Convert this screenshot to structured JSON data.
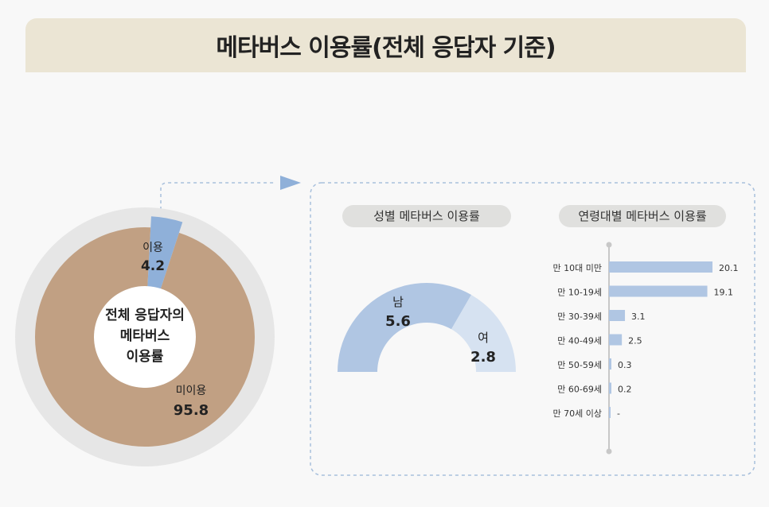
{
  "title": "메타버스 이용률(전체 응답자 기준)",
  "colors": {
    "donut_main": "#c1a083",
    "donut_use": "#8fb0d9",
    "donut_ring": "#e6e6e6",
    "half_male": "#b0c6e3",
    "half_female": "#d6e2f1",
    "bar": "#b0c6e3",
    "pill": "#e0e0de"
  },
  "donut": {
    "center_line1": "전체 응답자의",
    "center_line2": "메타버스",
    "center_line3": "이용률"
  },
  "gender_title": "성별 메타버스 이용률",
  "age_title": "연령대별 메타버스 이용률",
  "chart_data": [
    {
      "type": "pie",
      "categories": [
        "이용",
        "미이용"
      ],
      "values": [
        4.2,
        95.8
      ],
      "title": "메타버스 이용률(전체 응답자 기준)"
    },
    {
      "type": "pie",
      "categories": [
        "남",
        "여"
      ],
      "values": [
        5.6,
        2.8
      ],
      "title": "성별 메타버스 이용률"
    },
    {
      "type": "bar",
      "orientation": "horizontal",
      "categories": [
        "만 10대 미만",
        "만 10-19세",
        "만 30-39세",
        "만 40-49세",
        "만 50-59세",
        "만 60-69세",
        "만 70세 이상"
      ],
      "values": [
        20.1,
        19.1,
        3.1,
        2.5,
        0.3,
        0.2,
        null
      ],
      "value_labels": [
        "20.1",
        "19.1",
        "3.1",
        "2.5",
        "0.3",
        "0.2",
        "-"
      ],
      "title": "연령대별 메타버스 이용률"
    }
  ]
}
